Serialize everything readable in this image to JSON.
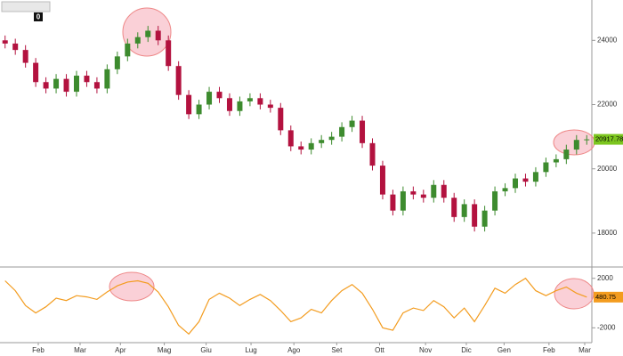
{
  "toolbar": {
    "badge": "0"
  },
  "chart_data": {
    "type": "candlestick",
    "open": [
      24000,
      23900,
      23700,
      23300,
      22700,
      22500,
      22800,
      22400,
      22900,
      22700,
      22500,
      23100,
      23500,
      23900,
      24100,
      24300,
      24000,
      23200,
      22300,
      21700,
      22000,
      22400,
      22200,
      21800,
      22100,
      22200,
      22000,
      21900,
      21200,
      20700,
      20600,
      20800,
      20900,
      21000,
      21300,
      21500,
      20800,
      20100,
      19200,
      18700,
      19300,
      19200,
      19100,
      19500,
      19100,
      18500,
      18900,
      18200,
      18700,
      19300,
      19400,
      19700,
      19600,
      19900,
      20200,
      20300,
      20600,
      20900
    ],
    "high": [
      24150,
      24050,
      23850,
      23450,
      22850,
      22950,
      22950,
      23050,
      23050,
      22850,
      23250,
      23650,
      24050,
      24250,
      24450,
      24450,
      24150,
      23350,
      22450,
      22150,
      22550,
      22550,
      22350,
      22250,
      22350,
      22350,
      22150,
      22050,
      21350,
      20850,
      20950,
      21050,
      21150,
      21450,
      21650,
      21650,
      20950,
      20250,
      19350,
      19450,
      19450,
      19350,
      19650,
      19650,
      19250,
      19050,
      19050,
      18850,
      19450,
      19550,
      19850,
      19850,
      20050,
      20350,
      20450,
      20750,
      21050,
      21050
    ],
    "low": [
      23750,
      23550,
      23150,
      22550,
      22350,
      22350,
      22250,
      22250,
      22550,
      22350,
      22350,
      22950,
      23350,
      23750,
      23950,
      23850,
      23050,
      22150,
      21550,
      21550,
      21850,
      22050,
      21650,
      21650,
      21950,
      21850,
      21750,
      21050,
      20550,
      20450,
      20450,
      20650,
      20750,
      20850,
      21150,
      20650,
      19950,
      19050,
      18550,
      18550,
      19050,
      18950,
      18950,
      18950,
      18350,
      18350,
      18050,
      18050,
      18550,
      19150,
      19250,
      19450,
      19450,
      19750,
      20050,
      20150,
      20450,
      20750
    ],
    "close": [
      23900,
      23700,
      23300,
      22700,
      22500,
      22800,
      22400,
      22900,
      22700,
      22500,
      23100,
      23500,
      23900,
      24100,
      24300,
      24000,
      23200,
      22300,
      21700,
      22000,
      22400,
      22200,
      21800,
      22100,
      22200,
      22000,
      21900,
      21200,
      20700,
      20600,
      20800,
      20900,
      21000,
      21300,
      21500,
      20800,
      20100,
      19200,
      18700,
      19300,
      19200,
      19100,
      19500,
      19100,
      18500,
      18900,
      18200,
      18700,
      19300,
      19400,
      19700,
      19600,
      19900,
      20200,
      20300,
      20600,
      20900,
      20917.78
    ],
    "up_color": "#3d8b2e",
    "down_color": "#b3123f",
    "last_color": "#7cc61f",
    "ylim": [
      17000,
      25200
    ],
    "yticks": [
      24000,
      22000,
      20000,
      18000
    ],
    "xlim": [
      0,
      58
    ],
    "xticks": [
      {
        "value": 3.75,
        "label": "Feb"
      },
      {
        "value": 7.85,
        "label": "Mar"
      },
      {
        "value": 11.8,
        "label": "Apr"
      },
      {
        "value": 16.1,
        "label": "Mag"
      },
      {
        "value": 20.2,
        "label": "Giu"
      },
      {
        "value": 24.6,
        "label": "Lug"
      },
      {
        "value": 28.8,
        "label": "Ago"
      },
      {
        "value": 33,
        "label": "Set"
      },
      {
        "value": 37.2,
        "label": "Ott"
      },
      {
        "value": 41.7,
        "label": "Nov"
      },
      {
        "value": 45.7,
        "label": "Dic"
      },
      {
        "value": 49.4,
        "label": "Gen"
      },
      {
        "value": 53.8,
        "label": "Feb"
      },
      {
        "value": 57.3,
        "label": "Mar"
      }
    ],
    "oscillator": {
      "color": "#f39c1f",
      "values": [
        1800,
        1000,
        -200,
        -800,
        -300,
        400,
        200,
        600,
        500,
        300,
        900,
        1400,
        1700,
        1800,
        1600,
        900,
        -300,
        -1800,
        -2500,
        -1500,
        300,
        800,
        400,
        -200,
        300,
        700,
        200,
        -600,
        -1500,
        -1200,
        -500,
        -800,
        200,
        1000,
        1500,
        800,
        -500,
        -2000,
        -2200,
        -800,
        -400,
        -600,
        200,
        -300,
        -1200,
        -400,
        -1500,
        -200,
        1200,
        800,
        1500,
        2000,
        1000,
        600,
        1000,
        1300,
        800,
        480.75
      ],
      "ylim": [
        -3200,
        2700
      ],
      "yticks": [
        2000,
        -2000
      ]
    }
  }
}
